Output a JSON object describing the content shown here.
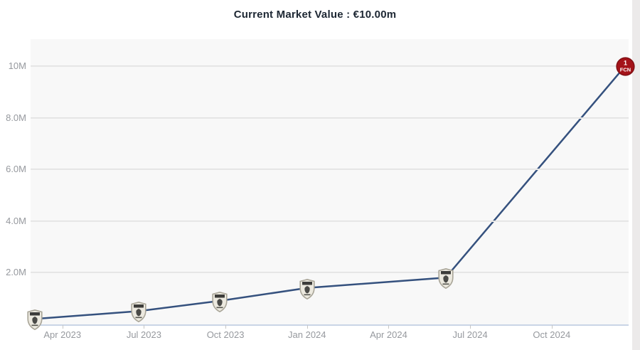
{
  "title": "Current Market Value : €10.00m",
  "colors": {
    "line": "#35517e",
    "plot_bg": "#f8f8f8",
    "grid": "#dcdcdc",
    "axis_line": "#c9d5e6",
    "label": "#96999e",
    "title_text": "#1d2733",
    "fcn_red": "#a41319",
    "fcn_red_dark": "#7e0e13",
    "shield_fill": "#ece9df",
    "shield_border": "#a9a598",
    "shield_dark": "#3c3c3a",
    "scroll_strip": "#eceaea"
  },
  "yaxis": {
    "ticks": [
      {
        "value": 10,
        "label": "10M"
      },
      {
        "value": 8,
        "label": "8.0M"
      },
      {
        "value": 6,
        "label": "6.0M"
      },
      {
        "value": 4,
        "label": "4.0M"
      },
      {
        "value": 2,
        "label": "2.0M"
      }
    ]
  },
  "xaxis": {
    "range": [
      -0.17,
      21.83
    ],
    "ticks": [
      {
        "m": 1,
        "label": "Apr 2023"
      },
      {
        "m": 4,
        "label": "Jul 2023"
      },
      {
        "m": 7,
        "label": "Oct 2023"
      },
      {
        "m": 10,
        "label": "Jan 2024"
      },
      {
        "m": 13,
        "label": "Apr 2024"
      },
      {
        "m": 16,
        "label": "Jul 2024"
      },
      {
        "m": 19,
        "label": "Oct 2024"
      }
    ]
  },
  "chart_data": {
    "type": "line",
    "title": "Current Market Value : €10.00m",
    "unit": "EUR million",
    "ylim": [
      0,
      11.05
    ],
    "grid": true,
    "legend": false,
    "points": [
      {
        "date": "Mar 2023",
        "m": 0,
        "value": 0.2,
        "badge": "shield"
      },
      {
        "date": "Jun 2023",
        "m": 3.8,
        "value": 0.5,
        "badge": "shield"
      },
      {
        "date": "Oct 2023",
        "m": 6.8,
        "value": 0.9,
        "badge": "shield"
      },
      {
        "date": "Jan 2024",
        "m": 10,
        "value": 1.4,
        "badge": "shield"
      },
      {
        "date": "Jun 2024",
        "m": 15.1,
        "value": 1.8,
        "badge": "shield"
      },
      {
        "date": "Dec 2024",
        "m": 21.7,
        "value": 10,
        "badge": "fcn"
      }
    ]
  },
  "badge_text": {
    "fcn_top": "1",
    "fcn_bottom": "FCN"
  }
}
